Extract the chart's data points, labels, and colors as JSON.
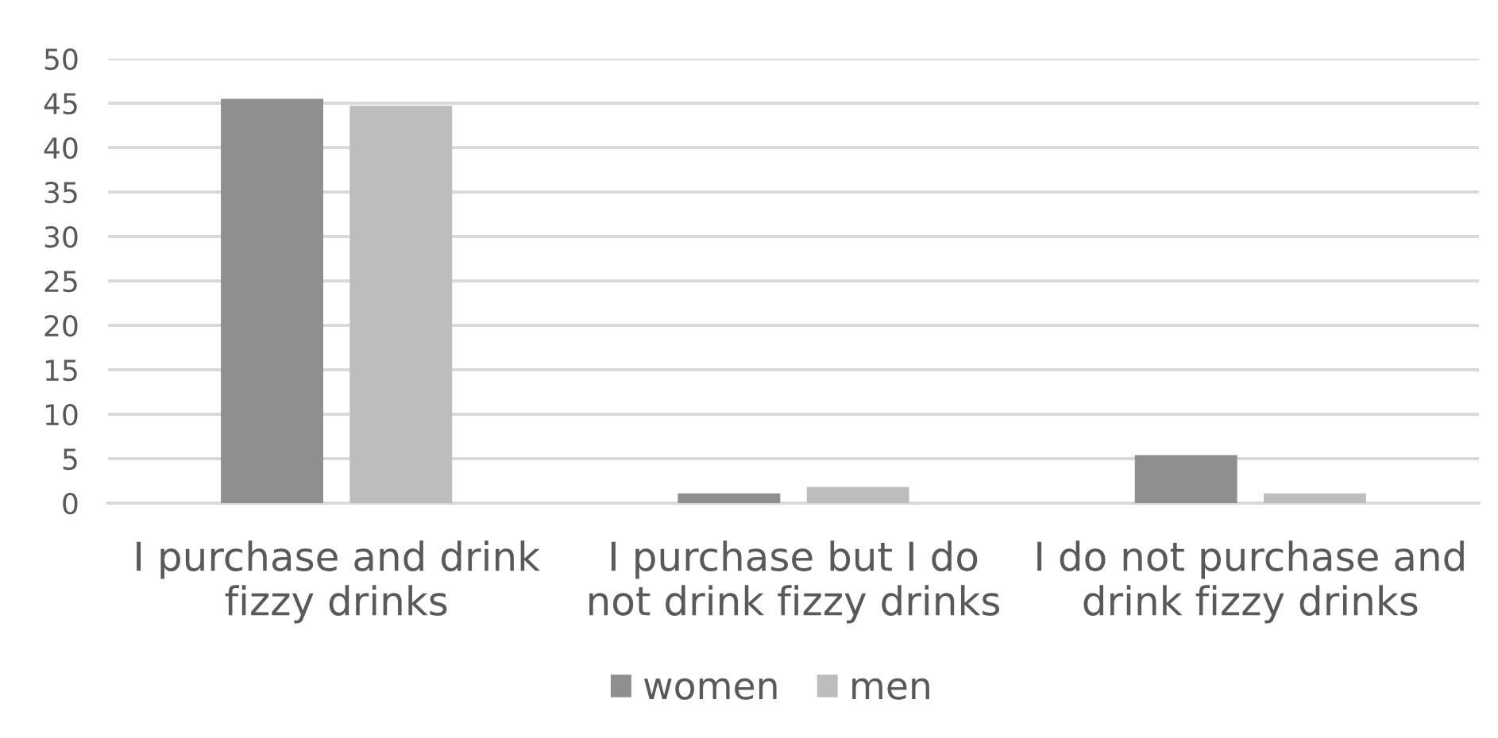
{
  "chart_data": {
    "type": "bar",
    "categories": [
      "I purchase and drink fizzy drinks",
      "I purchase but I do not drink fizzy drinks",
      "I do not purchase and drink fizzy drinks"
    ],
    "series": [
      {
        "name": "women",
        "color": "#8f8f8f",
        "values": [
          45.5,
          1.1,
          5.4
        ]
      },
      {
        "name": "men",
        "color": "#bdbdbd",
        "values": [
          44.7,
          1.8,
          1.1
        ]
      }
    ],
    "ylim": [
      0,
      50
    ],
    "yticks": [
      0,
      5,
      10,
      15,
      20,
      25,
      30,
      35,
      40,
      45,
      50
    ],
    "grid": "y",
    "legend": "bottom"
  }
}
